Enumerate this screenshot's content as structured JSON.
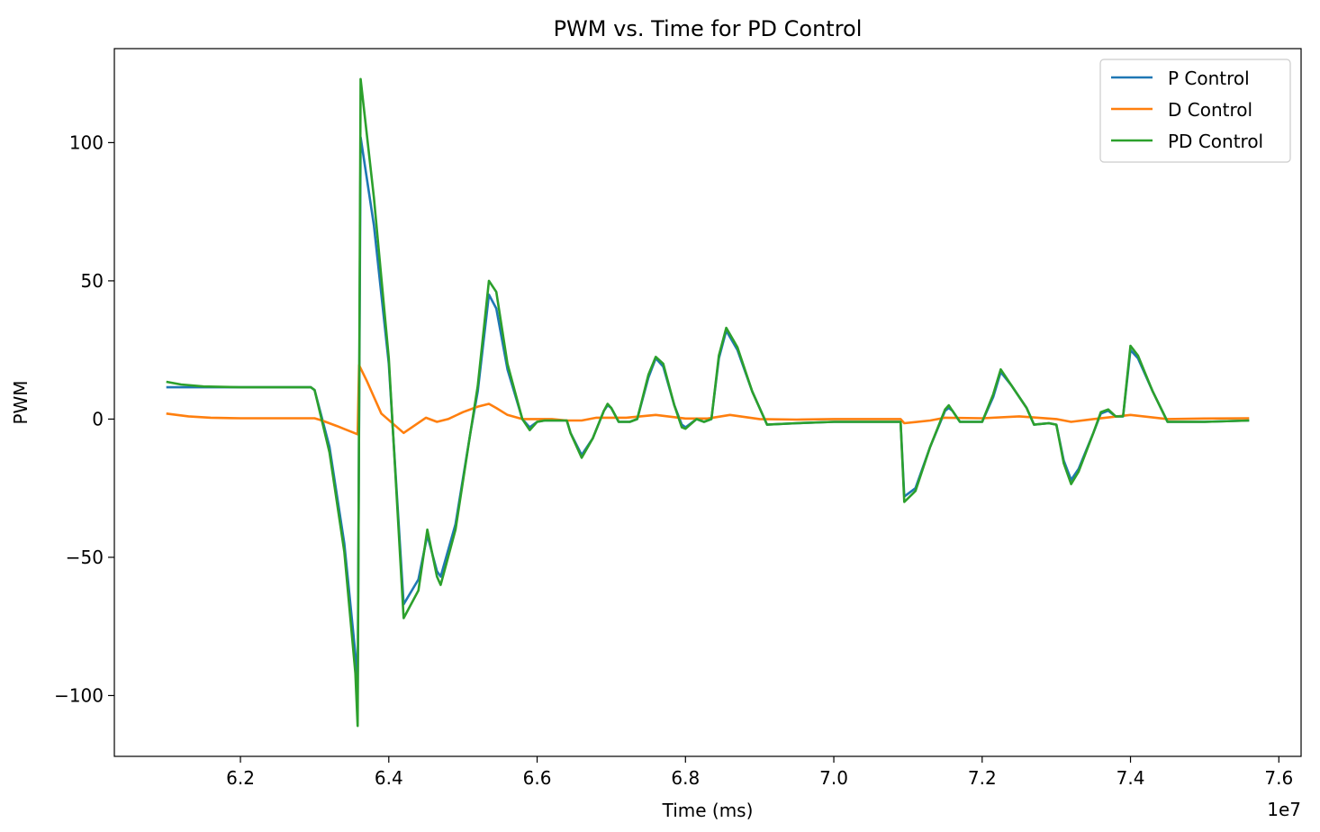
{
  "chart_data": {
    "type": "line",
    "title": "PWM vs. Time for PD Control",
    "xlabel": "Time (ms)",
    "ylabel": "PWM",
    "x_offset_label": "1e7",
    "x_scale": 10000000,
    "xlim": [
      6.03,
      7.63
    ],
    "ylim": [
      -122,
      134
    ],
    "x_ticks": [
      6.2,
      6.4,
      6.6,
      6.8,
      7.0,
      7.2,
      7.4,
      7.6
    ],
    "x_tick_labels": [
      "6.2",
      "6.4",
      "6.6",
      "6.8",
      "7.0",
      "7.2",
      "7.4",
      "7.6"
    ],
    "y_ticks": [
      100,
      50,
      0,
      -50,
      -100
    ],
    "y_tick_labels": [
      "100",
      "50",
      "0",
      "−50",
      "−100"
    ],
    "grid": false,
    "legend_position": "top-right",
    "series": [
      {
        "name": "P Control",
        "color": "#1f77b4",
        "points": [
          [
            6.1,
            11.5
          ],
          [
            6.15,
            11.5
          ],
          [
            6.2,
            11.5
          ],
          [
            6.25,
            11.5
          ],
          [
            6.295,
            11.5
          ],
          [
            6.3,
            10.5
          ],
          [
            6.32,
            -10
          ],
          [
            6.34,
            -45
          ],
          [
            6.355,
            -85
          ],
          [
            6.358,
            -100
          ],
          [
            6.362,
            102
          ],
          [
            6.38,
            70
          ],
          [
            6.4,
            20
          ],
          [
            6.42,
            -67
          ],
          [
            6.44,
            -58
          ],
          [
            6.452,
            -42
          ],
          [
            6.465,
            -55
          ],
          [
            6.47,
            -57
          ],
          [
            6.49,
            -38
          ],
          [
            6.51,
            -5
          ],
          [
            6.52,
            10
          ],
          [
            6.535,
            45
          ],
          [
            6.545,
            40
          ],
          [
            6.56,
            18
          ],
          [
            6.58,
            0
          ],
          [
            6.59,
            -3
          ],
          [
            6.6,
            -1
          ],
          [
            6.61,
            -0.5
          ],
          [
            6.64,
            -0.5
          ],
          [
            6.645,
            -5
          ],
          [
            6.66,
            -13
          ],
          [
            6.675,
            -7
          ],
          [
            6.69,
            3
          ],
          [
            6.695,
            5
          ],
          [
            6.7,
            4
          ],
          [
            6.71,
            -1
          ],
          [
            6.725,
            -1
          ],
          [
            6.735,
            0
          ],
          [
            6.75,
            15
          ],
          [
            6.76,
            22
          ],
          [
            6.77,
            19
          ],
          [
            6.785,
            5
          ],
          [
            6.795,
            -2
          ],
          [
            6.8,
            -3
          ],
          [
            6.815,
            0
          ],
          [
            6.825,
            -1
          ],
          [
            6.835,
            0
          ],
          [
            6.845,
            22
          ],
          [
            6.855,
            32
          ],
          [
            6.87,
            25
          ],
          [
            6.89,
            10
          ],
          [
            6.91,
            -2
          ],
          [
            6.95,
            -1.5
          ],
          [
            7.0,
            -1
          ],
          [
            7.05,
            -1
          ],
          [
            7.09,
            -1
          ],
          [
            7.095,
            -28
          ],
          [
            7.11,
            -25
          ],
          [
            7.13,
            -10
          ],
          [
            7.15,
            3
          ],
          [
            7.155,
            4
          ],
          [
            7.16,
            3
          ],
          [
            7.17,
            -1
          ],
          [
            7.2,
            -1
          ],
          [
            7.215,
            8
          ],
          [
            7.225,
            17
          ],
          [
            7.24,
            12
          ],
          [
            7.26,
            4
          ],
          [
            7.27,
            -2
          ],
          [
            7.29,
            -1.5
          ],
          [
            7.3,
            -2
          ],
          [
            7.31,
            -15
          ],
          [
            7.32,
            -22
          ],
          [
            7.33,
            -18
          ],
          [
            7.35,
            -5
          ],
          [
            7.36,
            2
          ],
          [
            7.37,
            3
          ],
          [
            7.38,
            1
          ],
          [
            7.39,
            1
          ],
          [
            7.4,
            25
          ],
          [
            7.41,
            22
          ],
          [
            7.43,
            10
          ],
          [
            7.45,
            -1
          ],
          [
            7.5,
            -1
          ],
          [
            7.56,
            -0.5
          ]
        ]
      },
      {
        "name": "D Control",
        "color": "#ff7f0e",
        "points": [
          [
            6.1,
            2
          ],
          [
            6.13,
            1
          ],
          [
            6.16,
            0.5
          ],
          [
            6.2,
            0.3
          ],
          [
            6.3,
            0.3
          ],
          [
            6.31,
            -0.5
          ],
          [
            6.33,
            -2.5
          ],
          [
            6.358,
            -5.5
          ],
          [
            6.36,
            19.5
          ],
          [
            6.37,
            14
          ],
          [
            6.38,
            8
          ],
          [
            6.39,
            2
          ],
          [
            6.42,
            -5
          ],
          [
            6.45,
            0.5
          ],
          [
            6.465,
            -1
          ],
          [
            6.48,
            0
          ],
          [
            6.5,
            2.5
          ],
          [
            6.52,
            4.5
          ],
          [
            6.535,
            5.5
          ],
          [
            6.545,
            4
          ],
          [
            6.56,
            1.5
          ],
          [
            6.58,
            0
          ],
          [
            6.62,
            0
          ],
          [
            6.64,
            -0.5
          ],
          [
            6.66,
            -0.5
          ],
          [
            6.68,
            0.5
          ],
          [
            6.72,
            0.5
          ],
          [
            6.76,
            1.5
          ],
          [
            6.8,
            0.2
          ],
          [
            6.83,
            0.2
          ],
          [
            6.86,
            1.5
          ],
          [
            6.9,
            0
          ],
          [
            6.95,
            -0.2
          ],
          [
            7.0,
            0
          ],
          [
            7.05,
            0
          ],
          [
            7.09,
            0
          ],
          [
            7.095,
            -1.5
          ],
          [
            7.13,
            -0.5
          ],
          [
            7.15,
            0.5
          ],
          [
            7.2,
            0.3
          ],
          [
            7.25,
            1
          ],
          [
            7.3,
            0
          ],
          [
            7.32,
            -1
          ],
          [
            7.35,
            0
          ],
          [
            7.4,
            1.5
          ],
          [
            7.45,
            0
          ],
          [
            7.5,
            0.2
          ],
          [
            7.56,
            0.3
          ]
        ]
      },
      {
        "name": "PD Control",
        "color": "#2ca02c",
        "points": [
          [
            6.1,
            13.5
          ],
          [
            6.12,
            12.5
          ],
          [
            6.15,
            11.8
          ],
          [
            6.2,
            11.5
          ],
          [
            6.25,
            11.5
          ],
          [
            6.295,
            11.5
          ],
          [
            6.3,
            10.5
          ],
          [
            6.32,
            -12
          ],
          [
            6.34,
            -48
          ],
          [
            6.355,
            -92
          ],
          [
            6.358,
            -111
          ],
          [
            6.362,
            123
          ],
          [
            6.38,
            80
          ],
          [
            6.4,
            22
          ],
          [
            6.42,
            -72
          ],
          [
            6.44,
            -62
          ],
          [
            6.452,
            -40
          ],
          [
            6.465,
            -57
          ],
          [
            6.47,
            -60
          ],
          [
            6.49,
            -40
          ],
          [
            6.51,
            -5
          ],
          [
            6.52,
            12
          ],
          [
            6.535,
            50
          ],
          [
            6.545,
            46
          ],
          [
            6.56,
            20
          ],
          [
            6.58,
            0
          ],
          [
            6.59,
            -4
          ],
          [
            6.6,
            -1
          ],
          [
            6.61,
            -0.5
          ],
          [
            6.64,
            -0.5
          ],
          [
            6.645,
            -5
          ],
          [
            6.66,
            -14
          ],
          [
            6.675,
            -7
          ],
          [
            6.69,
            3
          ],
          [
            6.695,
            5.5
          ],
          [
            6.7,
            4
          ],
          [
            6.71,
            -1
          ],
          [
            6.725,
            -1
          ],
          [
            6.735,
            0
          ],
          [
            6.75,
            16
          ],
          [
            6.76,
            22.5
          ],
          [
            6.77,
            20
          ],
          [
            6.785,
            5
          ],
          [
            6.795,
            -3
          ],
          [
            6.8,
            -3.5
          ],
          [
            6.815,
            0
          ],
          [
            6.825,
            -1
          ],
          [
            6.835,
            0
          ],
          [
            6.845,
            23
          ],
          [
            6.855,
            33
          ],
          [
            6.87,
            26
          ],
          [
            6.89,
            10
          ],
          [
            6.91,
            -2
          ],
          [
            6.95,
            -1.5
          ],
          [
            7.0,
            -1
          ],
          [
            7.05,
            -1
          ],
          [
            7.09,
            -1
          ],
          [
            7.095,
            -30
          ],
          [
            7.11,
            -26
          ],
          [
            7.13,
            -10
          ],
          [
            7.15,
            3.5
          ],
          [
            7.155,
            5
          ],
          [
            7.16,
            3
          ],
          [
            7.17,
            -1
          ],
          [
            7.2,
            -1
          ],
          [
            7.215,
            9
          ],
          [
            7.225,
            18
          ],
          [
            7.24,
            12
          ],
          [
            7.26,
            4
          ],
          [
            7.27,
            -2
          ],
          [
            7.29,
            -1.5
          ],
          [
            7.3,
            -2
          ],
          [
            7.31,
            -16
          ],
          [
            7.32,
            -23.5
          ],
          [
            7.33,
            -19
          ],
          [
            7.35,
            -5
          ],
          [
            7.36,
            2.5
          ],
          [
            7.37,
            3.5
          ],
          [
            7.38,
            1
          ],
          [
            7.39,
            1
          ],
          [
            7.4,
            26.5
          ],
          [
            7.41,
            23
          ],
          [
            7.43,
            10
          ],
          [
            7.45,
            -1
          ],
          [
            7.5,
            -1
          ],
          [
            7.56,
            -0.5
          ]
        ]
      }
    ]
  }
}
